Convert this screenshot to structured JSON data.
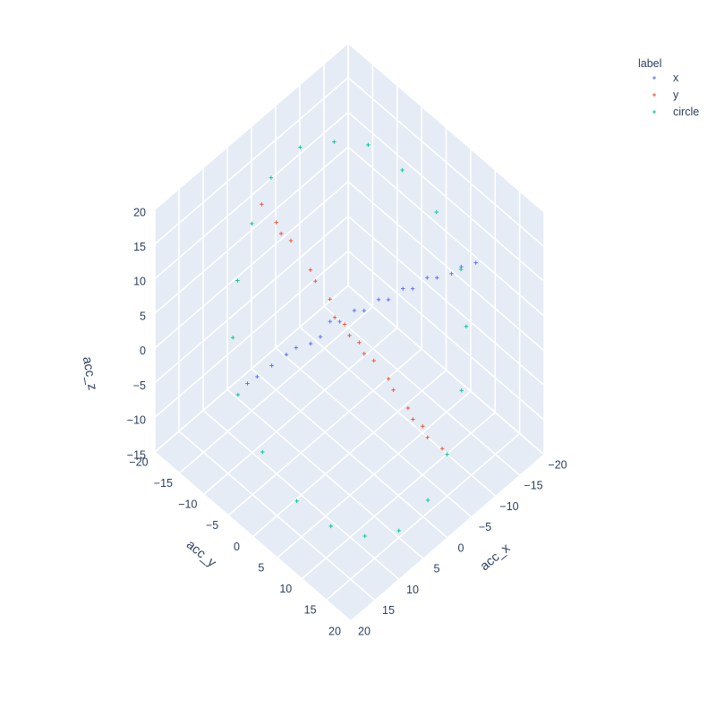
{
  "chart_data": {
    "type": "scatter3d",
    "marker_symbol": "cross",
    "axes": {
      "x": {
        "title": "acc_x",
        "range": [
          -20,
          20
        ],
        "ticks": [
          -20,
          -15,
          -10,
          -5,
          0,
          5,
          10,
          15,
          20
        ],
        "tick_labels": [
          "−20",
          "−15",
          "−10",
          "−5",
          "0",
          "5",
          "10",
          "15",
          "20"
        ]
      },
      "y": {
        "title": "acc_y",
        "range": [
          -20,
          20
        ],
        "ticks": [
          -20,
          -15,
          -10,
          -5,
          0,
          5,
          10,
          15,
          20
        ],
        "tick_labels": [
          "−20",
          "−15",
          "−10",
          "−5",
          "0",
          "5",
          "10",
          "15",
          "20"
        ]
      },
      "z": {
        "title": "acc_z",
        "range": [
          -15,
          20
        ],
        "ticks": [
          -15,
          -10,
          -5,
          0,
          5,
          10,
          15,
          20
        ],
        "tick_labels": [
          "−15",
          "−10",
          "−5",
          "0",
          "5",
          "10",
          "15",
          "20"
        ]
      }
    },
    "grid": true,
    "legend": {
      "title": "label",
      "placement": "top-right",
      "entries": [
        {
          "name": "x",
          "color": "#636efa"
        },
        {
          "name": "y",
          "color": "#ef553b"
        },
        {
          "name": "circle",
          "color": "#00cc96"
        }
      ]
    },
    "series": [
      {
        "name": "x",
        "color": "#636efa",
        "points": [
          [
            13,
            -8,
            -2
          ],
          [
            10,
            -6,
            0
          ],
          [
            7,
            -4,
            2
          ],
          [
            4,
            -2,
            3
          ],
          [
            1,
            -1,
            4
          ],
          [
            -2,
            1,
            5
          ],
          [
            -5,
            3,
            6
          ],
          [
            -8,
            5,
            7
          ],
          [
            -11,
            7,
            8
          ],
          [
            -14,
            9,
            9
          ],
          [
            -16,
            10,
            9
          ],
          [
            12,
            -7,
            -1
          ],
          [
            8,
            -5,
            1
          ],
          [
            5,
            -3,
            2
          ],
          [
            2,
            -2,
            4
          ],
          [
            -1,
            0,
            5
          ],
          [
            -4,
            2,
            6
          ],
          [
            -7,
            4,
            7
          ],
          [
            -10,
            6,
            8
          ],
          [
            -13,
            8,
            8
          ]
        ]
      },
      {
        "name": "y",
        "color": "#ef553b",
        "points": [
          [
            -6,
            13,
            -10
          ],
          [
            -5,
            10,
            -8
          ],
          [
            -4,
            8,
            -6
          ],
          [
            -3,
            5,
            -3
          ],
          [
            -2,
            3,
            -1
          ],
          [
            -1,
            1,
            1
          ],
          [
            0,
            -1,
            3
          ],
          [
            1,
            -3,
            6
          ],
          [
            2,
            -6,
            9
          ],
          [
            3,
            -9,
            12
          ],
          [
            4,
            -11,
            14
          ],
          [
            5,
            -13,
            16
          ],
          [
            -5,
            11,
            -9
          ],
          [
            -3,
            6,
            -4
          ],
          [
            -1,
            2,
            0
          ],
          [
            1,
            -2,
            4
          ],
          [
            2,
            -5,
            8
          ],
          [
            4,
            -10,
            13
          ],
          [
            -4,
            9,
            -7
          ],
          [
            0,
            0,
            2
          ]
        ]
      },
      {
        "name": "circle",
        "color": "#00cc96",
        "points": [
          [
            0,
            16,
            -12
          ],
          [
            5,
            15,
            -14
          ],
          [
            10,
            13,
            -13
          ],
          [
            14,
            10,
            -11
          ],
          [
            17,
            6,
            -8
          ],
          [
            18,
            0,
            -4
          ],
          [
            17,
            -6,
            0
          ],
          [
            14,
            -10,
            4
          ],
          [
            10,
            -13,
            8
          ],
          [
            5,
            -15,
            12
          ],
          [
            0,
            -16,
            15
          ],
          [
            -5,
            -15,
            17
          ],
          [
            -10,
            -13,
            16
          ],
          [
            -14,
            -10,
            15
          ],
          [
            -17,
            -6,
            12
          ],
          [
            -18,
            0,
            9
          ],
          [
            -17,
            6,
            5
          ],
          [
            -14,
            10,
            1
          ],
          [
            -10,
            13,
            -4
          ],
          [
            -5,
            15,
            -9
          ]
        ]
      }
    ]
  }
}
